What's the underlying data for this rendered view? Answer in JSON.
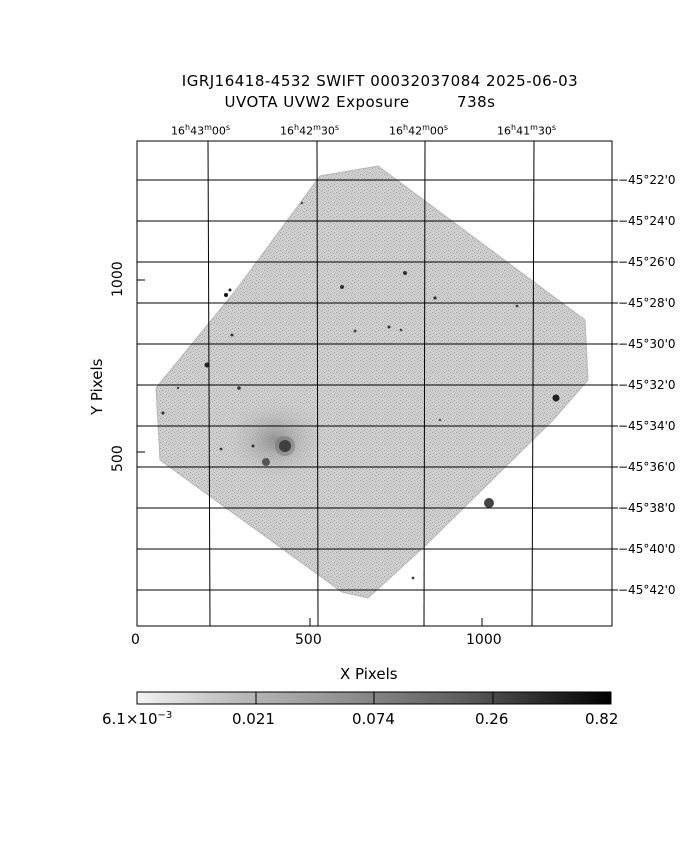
{
  "header": {
    "title": "IGRJ16418-4532 SWIFT 00032037084 2025-06-03",
    "subtitle_prefix": "UVOTA UVW2 Exposure",
    "exposure": "738s"
  },
  "axes": {
    "x_label": "X Pixels",
    "y_label": "Y Pixels",
    "x_ticks": [
      "0",
      "500",
      "1000"
    ],
    "y_ticks": [
      "500",
      "1000"
    ]
  },
  "ra_ticks": [
    {
      "h": "16",
      "m": "43",
      "s": "00"
    },
    {
      "h": "16",
      "m": "42",
      "s": "30"
    },
    {
      "h": "16",
      "m": "42",
      "s": "00"
    },
    {
      "h": "16",
      "m": "41",
      "s": "30"
    }
  ],
  "dec_ticks": [
    "−45°22'0",
    "−45°24'0",
    "−45°26'0",
    "−45°28'0",
    "−45°30'0",
    "−45°32'0",
    "−45°34'0",
    "−45°36'0",
    "−45°38'0",
    "−45°40'0",
    "−45°42'0"
  ],
  "colorbar": {
    "min_mantissa": "6.1×10",
    "min_exponent": "−3",
    "ticks": [
      "0.021",
      "0.074",
      "0.26",
      "0.82"
    ]
  },
  "colors": {
    "frame": "#000000",
    "field_fill": "#c9c9c9",
    "grid": "#000000"
  }
}
